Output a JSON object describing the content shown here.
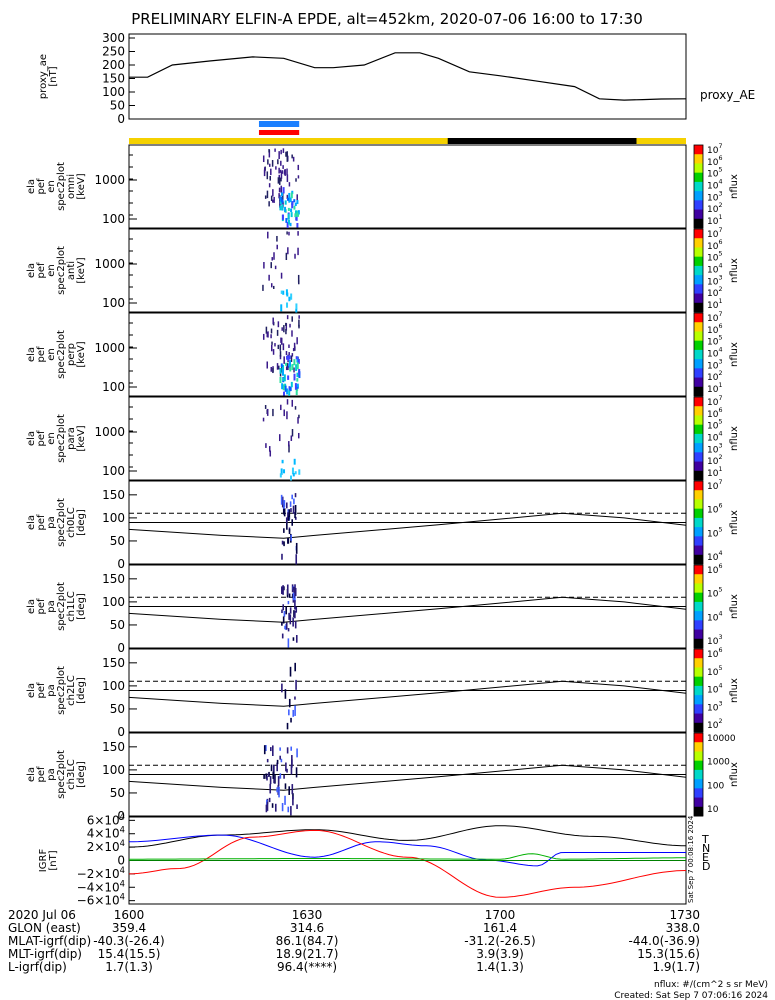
{
  "title": "PRELIMINARY ELFIN-A EPDE, alt=452km, 2020-07-06 16:00 to 17:30",
  "colors": {
    "bar_yellow": "#f5d100",
    "bar_black": "#000000",
    "blue": "#1a7fff",
    "red": "#ff0000",
    "green": "#00aa00"
  },
  "chart_data": [
    {
      "type": "line",
      "id": "proxy_ae",
      "ylabel": "proxy_ae\n[nT]",
      "right_label": "proxy_AE",
      "yticks": [
        "300",
        "250",
        "200",
        "150",
        "100",
        "50",
        "0"
      ],
      "ylim": [
        0,
        300
      ],
      "x_minutes": [
        0,
        3,
        7,
        13,
        20,
        25,
        30,
        33,
        38,
        43,
        47,
        50,
        55,
        60,
        66,
        72,
        76,
        80,
        83,
        86,
        90
      ],
      "values": [
        155,
        155,
        200,
        215,
        230,
        225,
        190,
        190,
        200,
        245,
        245,
        225,
        175,
        160,
        140,
        120,
        75,
        70,
        72,
        74,
        75
      ]
    },
    {
      "type": "heatmap",
      "id": "spec_omni",
      "ylabel": "ela\npef\nen\nspec2plot\nomni\n[keV]",
      "yticks": [
        "1000",
        "100"
      ],
      "colorbar": {
        "label": "nflux",
        "ticks": [
          "10^7",
          "10^6",
          "10^5",
          "10^4",
          "10^3",
          "10^2",
          "10^1"
        ]
      }
    },
    {
      "type": "heatmap",
      "id": "spec_anti",
      "ylabel": "ela\npef\nen\nspec2plot\nanti\n[keV]",
      "yticks": [
        "1000",
        "100"
      ],
      "colorbar": {
        "label": "nflux",
        "ticks": [
          "10^7",
          "10^6",
          "10^5",
          "10^4",
          "10^3",
          "10^2",
          "10^1"
        ]
      }
    },
    {
      "type": "heatmap",
      "id": "spec_perp",
      "ylabel": "ela\npef\nen\nspec2plot\nperp\n[keV]",
      "yticks": [
        "1000",
        "100"
      ],
      "colorbar": {
        "label": "nflux",
        "ticks": [
          "10^7",
          "10^6",
          "10^5",
          "10^4",
          "10^3",
          "10^2",
          "10^1"
        ]
      }
    },
    {
      "type": "heatmap",
      "id": "spec_para",
      "ylabel": "ela\npef\nen\nspec2plot\npara\n[keV]",
      "yticks": [
        "1000",
        "100"
      ],
      "colorbar": {
        "label": "nflux",
        "ticks": [
          "10^7",
          "10^6",
          "10^5",
          "10^4",
          "10^3",
          "10^2",
          "10^1"
        ]
      }
    },
    {
      "type": "heatmap",
      "id": "ch0lc",
      "ylabel": "ela\npef\npa\nspec2plot\nch0LC\n[deg]",
      "yticks": [
        "150",
        "100",
        "50",
        "0"
      ],
      "ylim": [
        0,
        180
      ],
      "colorbar": {
        "label": "nflux",
        "ticks": [
          "10^7",
          "10^6",
          "10^5",
          "10^4"
        ]
      }
    },
    {
      "type": "heatmap",
      "id": "ch1lc",
      "ylabel": "ela\npef\npa\nspec2plot\nch1LC\n[deg]",
      "yticks": [
        "150",
        "100",
        "50",
        "0"
      ],
      "ylim": [
        0,
        180
      ],
      "colorbar": {
        "label": "nflux",
        "ticks": [
          "10^6",
          "10^5",
          "10^4",
          "10^3"
        ]
      }
    },
    {
      "type": "heatmap",
      "id": "ch2lc",
      "ylabel": "ela\npef\npa\nspec2plot\nch2LC\n[deg]",
      "yticks": [
        "150",
        "100",
        "50",
        "0"
      ],
      "ylim": [
        0,
        180
      ],
      "colorbar": {
        "label": "nflux",
        "ticks": [
          "10^6",
          "10^5",
          "10^4",
          "10^3",
          "10^2"
        ]
      }
    },
    {
      "type": "heatmap",
      "id": "ch3lc",
      "ylabel": "ela\npef\npa\nspec2plot\nch3LC\n[deg]",
      "yticks": [
        "150",
        "100",
        "50",
        "0"
      ],
      "ylim": [
        0,
        180
      ],
      "colorbar": {
        "label": "nflux",
        "ticks": [
          "10000",
          "1000",
          "100",
          "10"
        ]
      }
    },
    {
      "type": "line",
      "id": "igrf",
      "ylabel": "IGRF\n[nT]",
      "yticks": [
        "6×10^4",
        "4×10^4",
        "2×10^4",
        "0",
        "−2×10^4",
        "−4×10^4",
        "−6×10^4"
      ],
      "ylim": [
        -65000,
        65000
      ],
      "legend": [
        "T",
        "N",
        "E",
        "D"
      ],
      "creation_note": "Sat Sep 7 00:08:16 2024"
    }
  ],
  "footer": {
    "rows": [
      [
        "2020 Jul 06",
        "1600",
        "1630",
        "1700",
        "1730"
      ],
      [
        "GLON (east)",
        "359.4",
        "314.6",
        "161.4",
        "338.0"
      ],
      [
        "MLAT-igrf(dip)",
        "-40.3(-26.4)",
        "86.1(84.7)",
        "-31.2(-26.5)",
        "-44.0(-36.9)"
      ],
      [
        "MLT-igrf(dip)",
        "15.4(15.5)",
        "18.9(21.7)",
        "3.9(3.9)",
        "15.3(15.6)"
      ],
      [
        "L-igrf(dip)",
        "1.7(1.3)",
        "96.4(****)",
        "1.4(1.3)",
        "1.9(1.7)"
      ]
    ],
    "nflux_units": "nflux: #/(cm^2 s sr MeV)",
    "created": "Created: Sat Sep  7 07:06:16 2024"
  }
}
